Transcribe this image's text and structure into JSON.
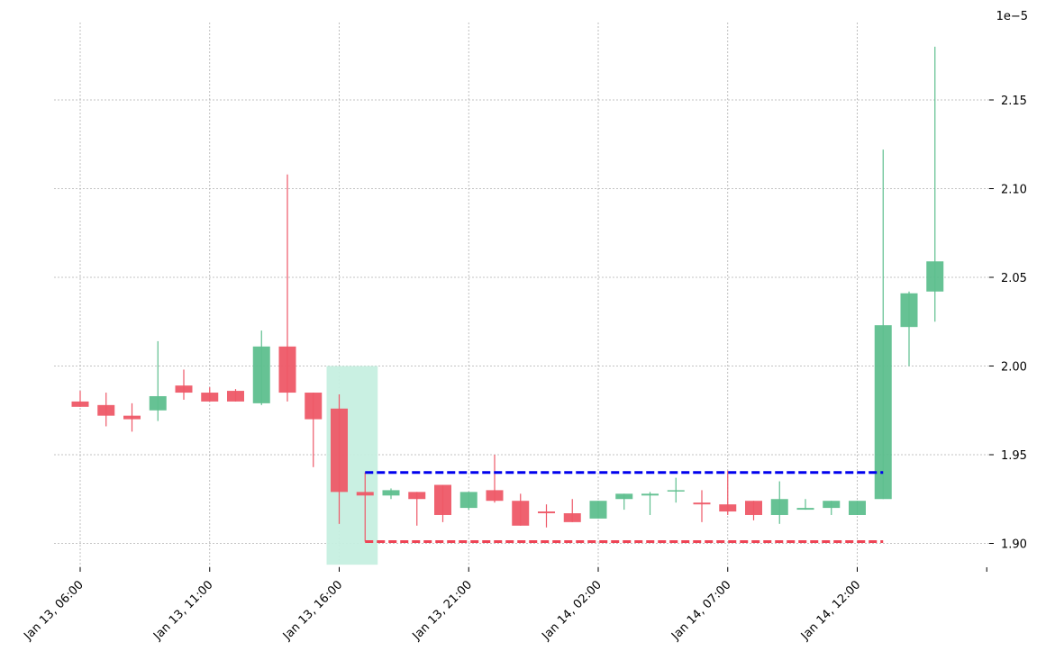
{
  "chart_data": {
    "type": "candlestick",
    "y_scale_label": "1e−5",
    "ylim": [
      1.888,
      2.195
    ],
    "y_ticks": [
      1.9,
      1.95,
      2.0,
      2.05,
      2.1,
      2.15
    ],
    "y_tick_labels": [
      "1.90",
      "1.95",
      "2.00",
      "2.05",
      "2.10",
      "2.15"
    ],
    "x_tick_labels": [
      "Jan 13, 06:00",
      "Jan 13, 11:00",
      "Jan 13, 16:00",
      "Jan 13, 21:00",
      "Jan 14, 02:00",
      "Jan 14, 07:00",
      "Jan 14, 12:00"
    ],
    "x_tick_hours": [
      0,
      5,
      10,
      15,
      20,
      25,
      30
    ],
    "x_tick_extra_hour": 35,
    "grid": true,
    "up_color": "#5ebf8e",
    "down_color": "#ee5867",
    "highlight_color": "#c6efe0",
    "resistance_color": "#0000ee",
    "support_color": "#ee4455",
    "candles": [
      {
        "time": "Jan 13, 06:00",
        "open": 1.98,
        "high": 1.986,
        "low": 1.977,
        "close": 1.977
      },
      {
        "time": "Jan 13, 07:00",
        "open": 1.978,
        "high": 1.985,
        "low": 1.966,
        "close": 1.972
      },
      {
        "time": "Jan 13, 08:00",
        "open": 1.972,
        "high": 1.979,
        "low": 1.963,
        "close": 1.97
      },
      {
        "time": "Jan 13, 09:00",
        "open": 1.975,
        "high": 2.014,
        "low": 1.969,
        "close": 1.983
      },
      {
        "time": "Jan 13, 10:00",
        "open": 1.989,
        "high": 1.998,
        "low": 1.981,
        "close": 1.985
      },
      {
        "time": "Jan 13, 11:00",
        "open": 1.985,
        "high": 1.988,
        "low": 1.98,
        "close": 1.98
      },
      {
        "time": "Jan 13, 12:00",
        "open": 1.986,
        "high": 1.987,
        "low": 1.98,
        "close": 1.98
      },
      {
        "time": "Jan 13, 13:00",
        "open": 1.979,
        "high": 2.02,
        "low": 1.978,
        "close": 2.011
      },
      {
        "time": "Jan 13, 14:00",
        "open": 2.011,
        "high": 2.108,
        "low": 1.98,
        "close": 1.985
      },
      {
        "time": "Jan 13, 15:00",
        "open": 1.985,
        "high": 1.985,
        "low": 1.943,
        "close": 1.97
      },
      {
        "time": "Jan 13, 16:00",
        "open": 1.976,
        "high": 1.984,
        "low": 1.911,
        "close": 1.929
      },
      {
        "time": "Jan 13, 17:00",
        "open": 1.929,
        "high": 1.94,
        "low": 1.901,
        "close": 1.927
      },
      {
        "time": "Jan 13, 18:00",
        "open": 1.927,
        "high": 1.931,
        "low": 1.925,
        "close": 1.93
      },
      {
        "time": "Jan 13, 19:00",
        "open": 1.929,
        "high": 1.929,
        "low": 1.91,
        "close": 1.925
      },
      {
        "time": "Jan 13, 20:00",
        "open": 1.933,
        "high": 1.933,
        "low": 1.912,
        "close": 1.916
      },
      {
        "time": "Jan 13, 21:00",
        "open": 1.92,
        "high": 1.929,
        "low": 1.919,
        "close": 1.929
      },
      {
        "time": "Jan 13, 22:00",
        "open": 1.93,
        "high": 1.95,
        "low": 1.923,
        "close": 1.924
      },
      {
        "time": "Jan 13, 23:00",
        "open": 1.924,
        "high": 1.928,
        "low": 1.91,
        "close": 1.91
      },
      {
        "time": "Jan 14, 00:00",
        "open": 1.918,
        "high": 1.922,
        "low": 1.909,
        "close": 1.917
      },
      {
        "time": "Jan 14, 01:00",
        "open": 1.917,
        "high": 1.925,
        "low": 1.912,
        "close": 1.912
      },
      {
        "time": "Jan 14, 02:00",
        "open": 1.914,
        "high": 1.924,
        "low": 1.914,
        "close": 1.924
      },
      {
        "time": "Jan 14, 03:00",
        "open": 1.925,
        "high": 1.928,
        "low": 1.919,
        "close": 1.928
      },
      {
        "time": "Jan 14, 04:00",
        "open": 1.927,
        "high": 1.929,
        "low": 1.916,
        "close": 1.928
      },
      {
        "time": "Jan 14, 05:00",
        "open": 1.93,
        "high": 1.937,
        "low": 1.923,
        "close": 1.93
      },
      {
        "time": "Jan 14, 06:00",
        "open": 1.923,
        "high": 1.93,
        "low": 1.912,
        "close": 1.922
      },
      {
        "time": "Jan 14, 07:00",
        "open": 1.922,
        "high": 1.941,
        "low": 1.916,
        "close": 1.918
      },
      {
        "time": "Jan 14, 08:00",
        "open": 1.924,
        "high": 1.924,
        "low": 1.913,
        "close": 1.916
      },
      {
        "time": "Jan 14, 09:00",
        "open": 1.916,
        "high": 1.935,
        "low": 1.911,
        "close": 1.925
      },
      {
        "time": "Jan 14, 10:00",
        "open": 1.919,
        "high": 1.925,
        "low": 1.919,
        "close": 1.92
      },
      {
        "time": "Jan 14, 11:00",
        "open": 1.92,
        "high": 1.924,
        "low": 1.916,
        "close": 1.924
      },
      {
        "time": "Jan 14, 12:00",
        "open": 1.916,
        "high": 1.924,
        "low": 1.916,
        "close": 1.924
      },
      {
        "time": "Jan 14, 13:00",
        "open": 1.925,
        "high": 2.122,
        "low": 1.925,
        "close": 2.023
      },
      {
        "time": "Jan 14, 14:00",
        "open": 2.022,
        "high": 2.042,
        "low": 2.0,
        "close": 2.041
      },
      {
        "time": "Jan 14, 15:00",
        "open": 2.042,
        "high": 2.18,
        "low": 2.025,
        "close": 2.059
      }
    ],
    "highlight_zone": {
      "start": "Jan 13, 16:00",
      "end": "Jan 13, 17:00",
      "y_low": 1.888,
      "y_high": 2.0
    },
    "resistance_line": {
      "value": 1.94,
      "start": "Jan 13, 17:00",
      "end": "Jan 14, 13:00"
    },
    "support_line": {
      "value": 1.901,
      "start": "Jan 13, 17:00",
      "end": "Jan 14, 13:00"
    }
  }
}
